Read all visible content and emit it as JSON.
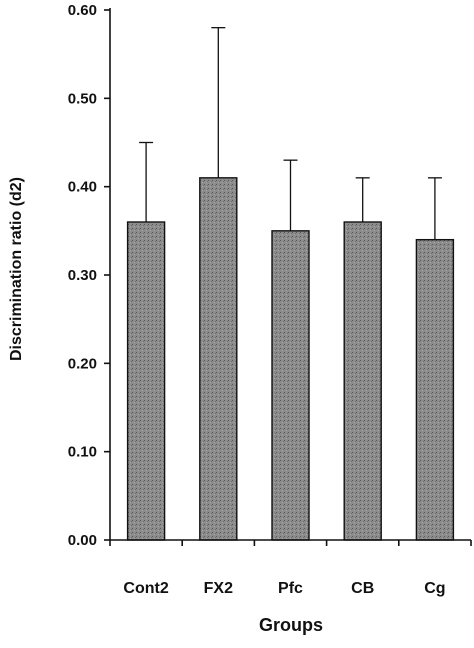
{
  "chart_data": {
    "type": "bar",
    "title": "",
    "xlabel": "Groups",
    "ylabel": "Discrimination ratio (d2)",
    "categories": [
      "Cont2",
      "FX2",
      "Pfc",
      "CB",
      "Cg"
    ],
    "values": [
      0.36,
      0.41,
      0.35,
      0.36,
      0.34
    ],
    "error_upper": [
      0.45,
      0.58,
      0.43,
      0.41,
      0.41
    ],
    "ylim": [
      0.0,
      0.6
    ],
    "yticks": [
      "0.00",
      "0.10",
      "0.20",
      "0.30",
      "0.40",
      "0.50",
      "0.60"
    ],
    "grid": false,
    "legend": "none",
    "bar_color": "#8c8c8c",
    "axis_color": "#111111"
  }
}
